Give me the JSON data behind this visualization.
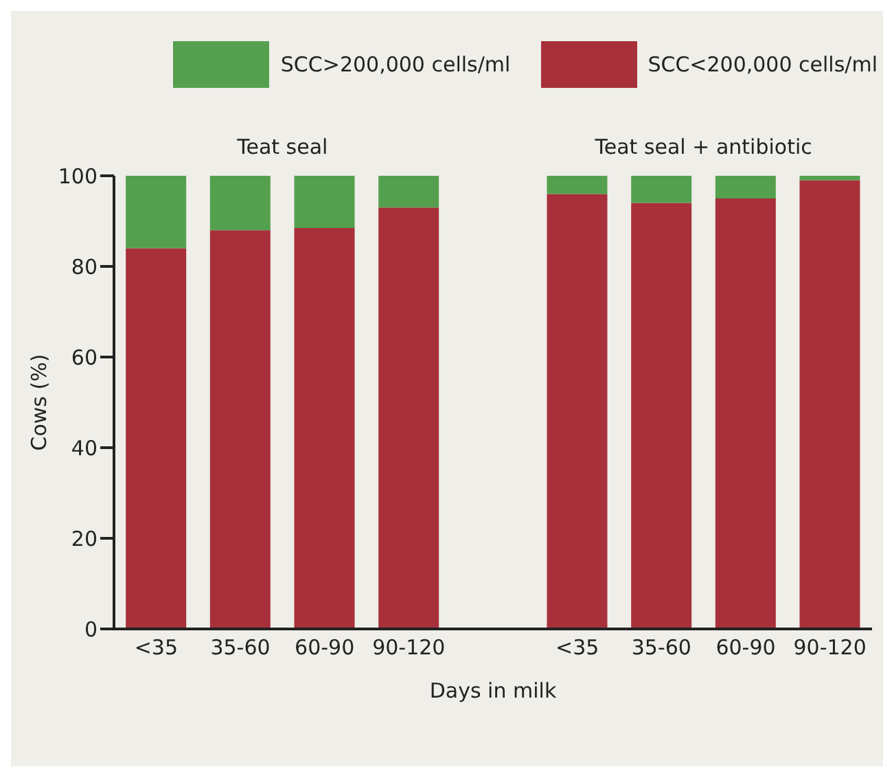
{
  "chart_data": {
    "type": "bar",
    "stacked": true,
    "xlabel": "Days in milk",
    "ylabel": "Cows (%)",
    "annotations": [
      "Teat seal",
      "Teat seal + antibiotic"
    ],
    "categories": [
      "<35",
      "35-60",
      "60-90",
      "90-120",
      null,
      "<35",
      "35-60",
      "60-90",
      "90-120"
    ],
    "series": [
      {
        "name": "SCC<200,000 cells/ml",
        "color": "#a8303a",
        "values": [
          84,
          88,
          88.5,
          93,
          null,
          96,
          94,
          95,
          99
        ]
      },
      {
        "name": "SCC>200,000 cells/ml",
        "color": "#55a04f",
        "values": [
          16,
          12,
          11.5,
          7,
          null,
          4,
          6,
          5,
          1
        ]
      }
    ],
    "ylim": [
      0,
      100
    ],
    "yticks": [
      0,
      20,
      40,
      60,
      80,
      100
    ],
    "grid": false,
    "legend": "top"
  }
}
